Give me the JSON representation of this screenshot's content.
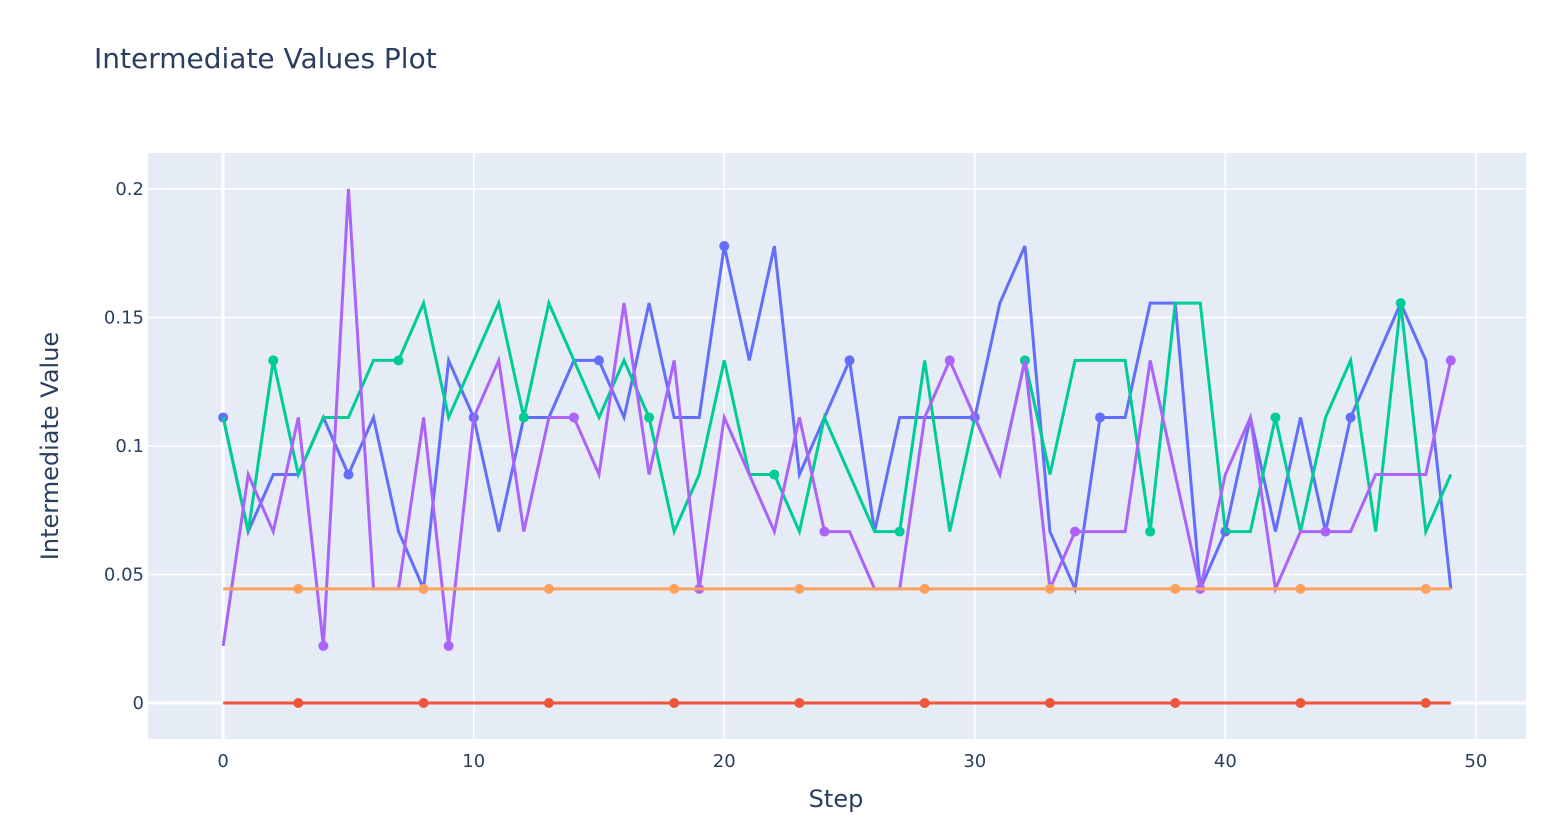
{
  "chart_data": {
    "type": "line",
    "title": "Intermediate Values Plot",
    "xlabel": "Step",
    "ylabel": "Intermediate Value",
    "xlim": [
      -3,
      52
    ],
    "ylim": [
      -0.014,
      0.214
    ],
    "xticks": [
      0,
      10,
      20,
      30,
      40,
      50
    ],
    "yticks": [
      0,
      0.05,
      0.1,
      0.15,
      0.2
    ],
    "ytick_labels": [
      "0",
      "0.05",
      "0.1",
      "0.15",
      "0.2"
    ],
    "grid": true,
    "legend": "none",
    "colors": {
      "plot_bg": "#e5ecf6",
      "grid": "#ffffff",
      "text": "#2a3f5f"
    },
    "series": [
      {
        "color": "#636efa",
        "marker_every": 5,
        "marker_offset": 0,
        "values": [
          0.1111,
          0.0667,
          0.0889,
          0.0889,
          0.1111,
          0.0889,
          0.1111,
          0.0667,
          0.0444,
          0.1333,
          0.1111,
          0.0667,
          0.1111,
          0.1111,
          0.1333,
          0.1333,
          0.1111,
          0.1556,
          0.1111,
          0.1111,
          0.1778,
          0.1333,
          0.1778,
          0.0889,
          0.1111,
          0.1333,
          0.0667,
          0.1111,
          0.1111,
          0.1111,
          0.1111,
          0.1556,
          0.1778,
          0.0667,
          0.0444,
          0.1111,
          0.1111,
          0.1556,
          0.1556,
          0.0444,
          0.0667,
          0.1111,
          0.0667,
          0.1111,
          0.0667,
          0.1111,
          0.1333,
          0.1556,
          0.1333,
          0.0444
        ]
      },
      {
        "color": "#ef553b",
        "marker_every": 5,
        "marker_offset": 3,
        "values": [
          0,
          0,
          0,
          0,
          0,
          0,
          0,
          0,
          0,
          0,
          0,
          0,
          0,
          0,
          0,
          0,
          0,
          0,
          0,
          0,
          0,
          0,
          0,
          0,
          0,
          0,
          0,
          0,
          0,
          0,
          0,
          0,
          0,
          0,
          0,
          0,
          0,
          0,
          0,
          0,
          0,
          0,
          0,
          0,
          0,
          0,
          0,
          0,
          0,
          0
        ]
      },
      {
        "color": "#00cc96",
        "marker_every": 5,
        "marker_offset": 2,
        "values": [
          0.1111,
          0.0667,
          0.1333,
          0.0889,
          0.1111,
          0.1111,
          0.1333,
          0.1333,
          0.1556,
          0.1111,
          0.1333,
          0.1556,
          0.1111,
          0.1556,
          0.1333,
          0.1111,
          0.1333,
          0.1111,
          0.0667,
          0.0889,
          0.1333,
          0.0889,
          0.0889,
          0.0667,
          0.1111,
          0.0889,
          0.0667,
          0.0667,
          0.1333,
          0.0667,
          0.1111,
          0.0889,
          0.1333,
          0.0889,
          0.1333,
          0.1333,
          0.1333,
          0.0667,
          0.1556,
          0.1556,
          0.0667,
          0.0667,
          0.1111,
          0.0667,
          0.1111,
          0.1333,
          0.0667,
          0.1556,
          0.0667,
          0.0889
        ]
      },
      {
        "color": "#ab63fa",
        "marker_every": 5,
        "marker_offset": 4,
        "values": [
          0.0222,
          0.0889,
          0.0667,
          0.1111,
          0.0222,
          0.2,
          0.0444,
          0.0444,
          0.1111,
          0.0222,
          0.1111,
          0.1333,
          0.0667,
          0.1111,
          0.1111,
          0.0889,
          0.1556,
          0.0889,
          0.1333,
          0.0444,
          0.1111,
          0.0889,
          0.0667,
          0.1111,
          0.0667,
          0.0667,
          0.0444,
          0.0444,
          0.1111,
          0.1333,
          0.1111,
          0.0889,
          0.1333,
          0.0444,
          0.0667,
          0.0667,
          0.0667,
          0.1333,
          0.0889,
          0.0444,
          0.0889,
          0.1111,
          0.0444,
          0.0667,
          0.0667,
          0.0667,
          0.0889,
          0.0889,
          0.0889,
          0.1333
        ]
      },
      {
        "color": "#ffa15a",
        "marker_every": 5,
        "marker_offset": 3,
        "values": [
          0.0444,
          0.0444,
          0.0444,
          0.0444,
          0.0444,
          0.0444,
          0.0444,
          0.0444,
          0.0444,
          0.0444,
          0.0444,
          0.0444,
          0.0444,
          0.0444,
          0.0444,
          0.0444,
          0.0444,
          0.0444,
          0.0444,
          0.0444,
          0.0444,
          0.0444,
          0.0444,
          0.0444,
          0.0444,
          0.0444,
          0.0444,
          0.0444,
          0.0444,
          0.0444,
          0.0444,
          0.0444,
          0.0444,
          0.0444,
          0.0444,
          0.0444,
          0.0444,
          0.0444,
          0.0444,
          0.0444,
          0.0444,
          0.0444,
          0.0444,
          0.0444,
          0.0444,
          0.0444,
          0.0444,
          0.0444,
          0.0444,
          0.0444
        ]
      }
    ]
  }
}
